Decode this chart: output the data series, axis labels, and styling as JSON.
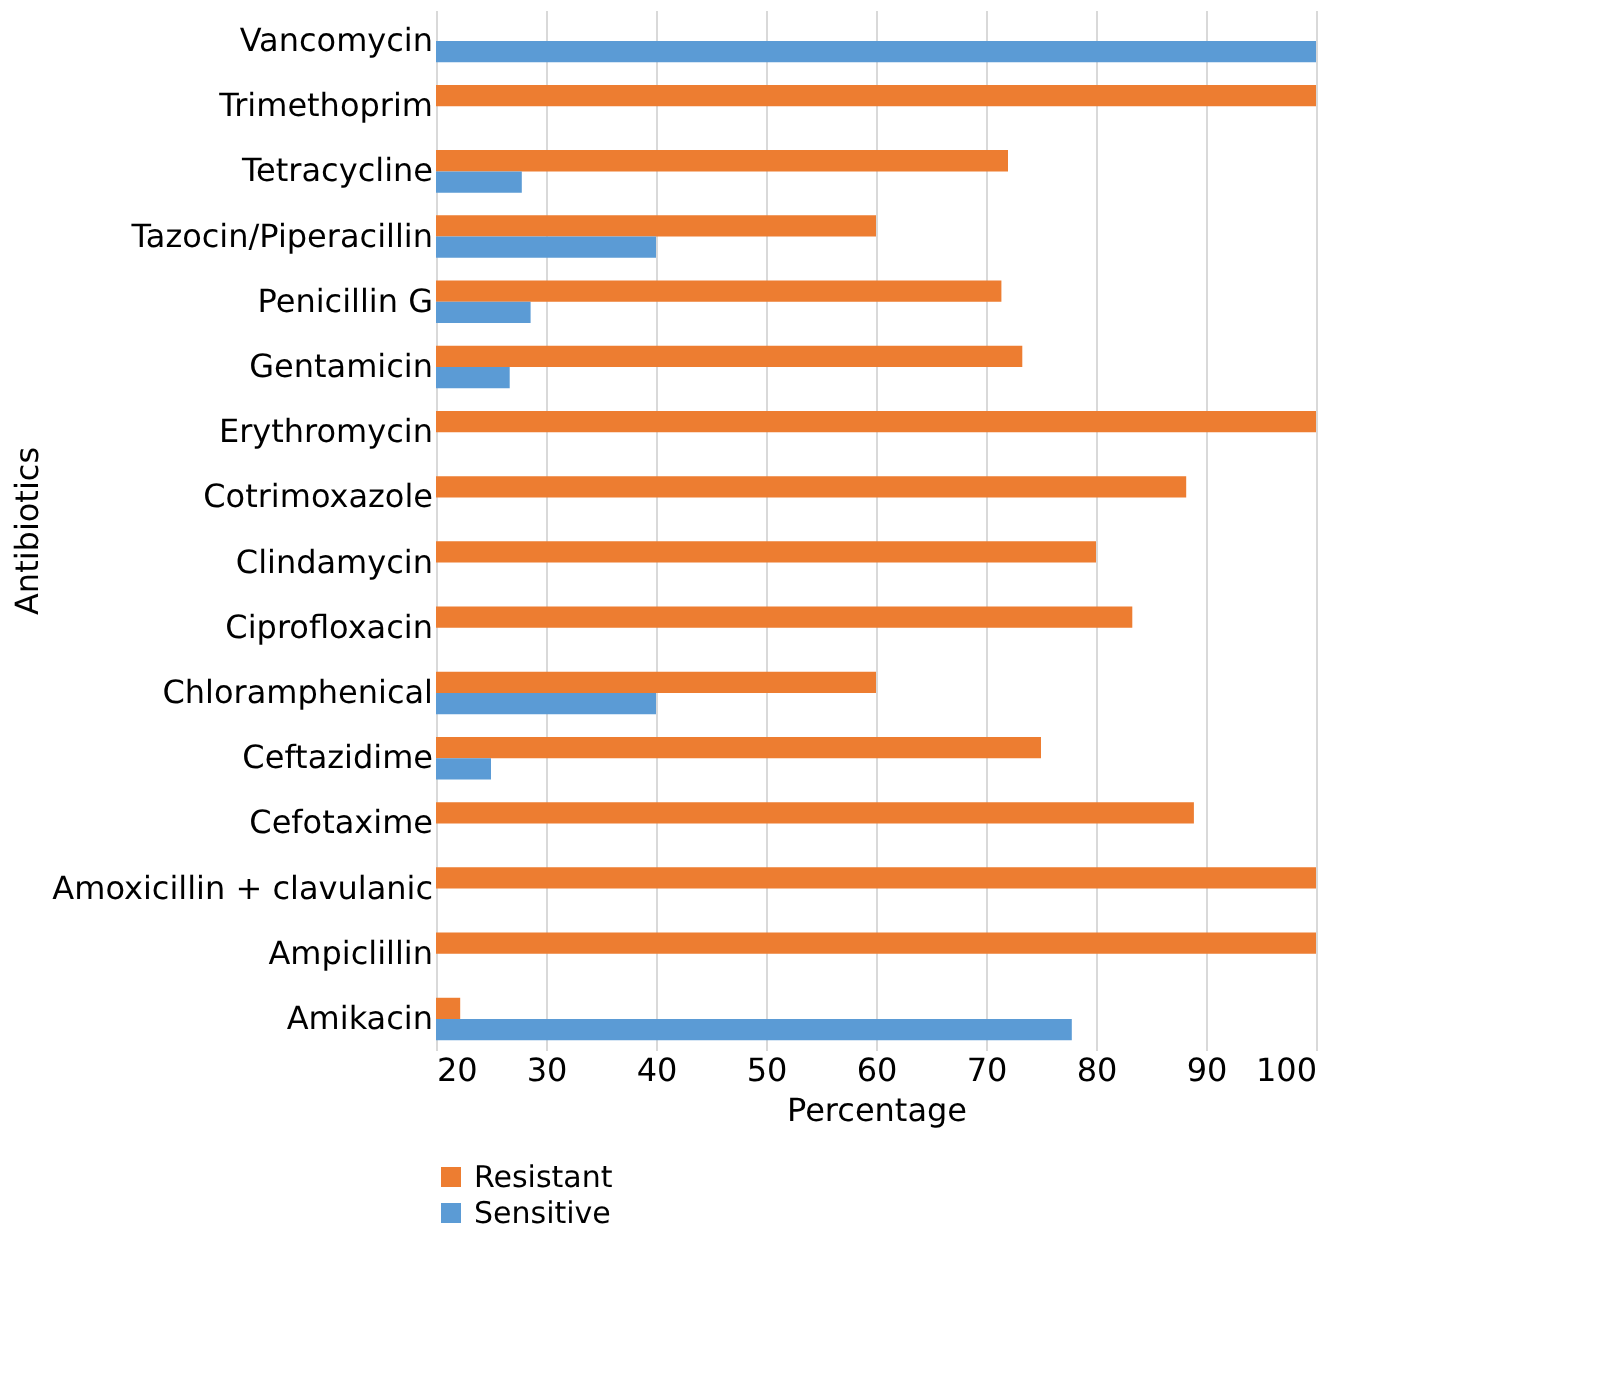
{
  "chart_data": {
    "type": "bar",
    "orientation": "horizontal",
    "xlabel": "Percentage",
    "ylabel": "Antibiotics",
    "categories": [
      "Vancomycin",
      "Trimethoprim",
      "Tetracycline",
      "Tazocin/Piperacillin",
      "Penicillin G",
      "Gentamicin",
      "Erythromycin",
      "Cotrimoxazole",
      "Clindamycin",
      "Ciprofloxacin",
      "Chloramphenical",
      "Ceftazidime",
      "Cefotaxime",
      "Amoxicillin + clavulanic",
      "Ampiclillin",
      "Amikacin"
    ],
    "series": [
      {
        "name": "Resistant",
        "color": "#ed7d31",
        "values": [
          null,
          100,
          72,
          60,
          71.4,
          73.3,
          100,
          88.2,
          80,
          83.3,
          60,
          75,
          88.9,
          100,
          100,
          22.2
        ]
      },
      {
        "name": "Sensitive",
        "color": "#5b9bd5",
        "values": [
          100,
          null,
          27.8,
          40,
          28.6,
          26.7,
          null,
          null,
          null,
          null,
          40,
          25,
          null,
          null,
          null,
          77.8
        ]
      }
    ],
    "xlim": [
      20,
      100
    ],
    "xticks": [
      20,
      30,
      40,
      50,
      60,
      70,
      80,
      90,
      100
    ],
    "grid": "x",
    "legend": "bottom left"
  }
}
